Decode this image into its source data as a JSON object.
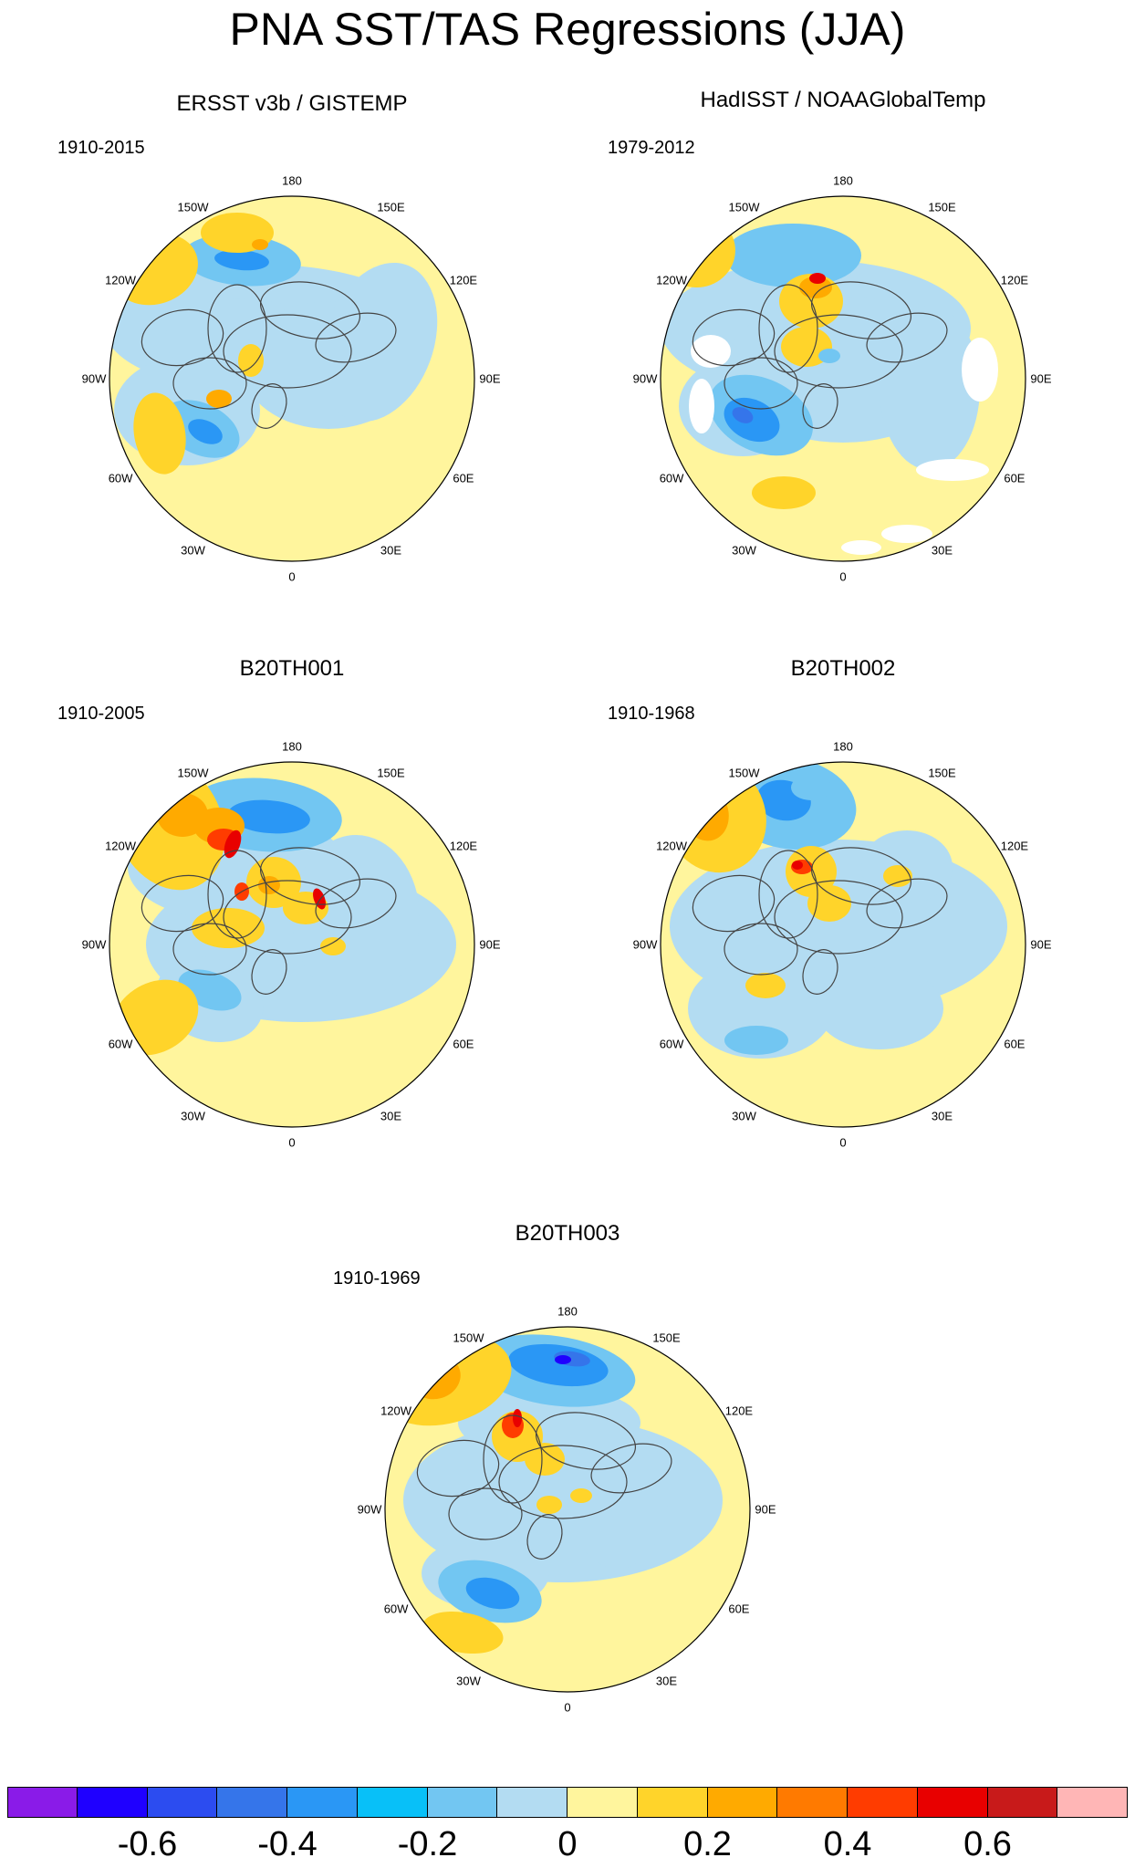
{
  "title": "PNA SST/TAS Regressions (JJA)",
  "lon_labels": [
    "180",
    "150E",
    "120E",
    "90E",
    "60E",
    "30E",
    "0",
    "30W",
    "60W",
    "90W",
    "120W",
    "150W"
  ],
  "panels": [
    {
      "title": "ERSST v3b / GISTEMP",
      "period": "1910-2015"
    },
    {
      "title": "HadISST / NOAAGlobalTemp",
      "period": "1979-2012"
    },
    {
      "title": "B20TH001",
      "period": "1910-2005"
    },
    {
      "title": "B20TH002",
      "period": "1910-1968"
    },
    {
      "title": "B20TH003",
      "period": "1910-1969"
    }
  ],
  "colorbar": {
    "colors": [
      "#8a1be8",
      "#1f00ff",
      "#2c4cf0",
      "#3575ea",
      "#2a97f5",
      "#08c0f8",
      "#72c6f2",
      "#b3dcf2",
      "#fff59d",
      "#ffd42a",
      "#ffaa00",
      "#ff7a00",
      "#ff3c00",
      "#e80000",
      "#c81a1a",
      "#ffb6b6"
    ],
    "tick_labels": [
      "-0.6",
      "-0.4",
      "-0.2",
      "0",
      "0.2",
      "0.4",
      "0.6"
    ]
  }
}
